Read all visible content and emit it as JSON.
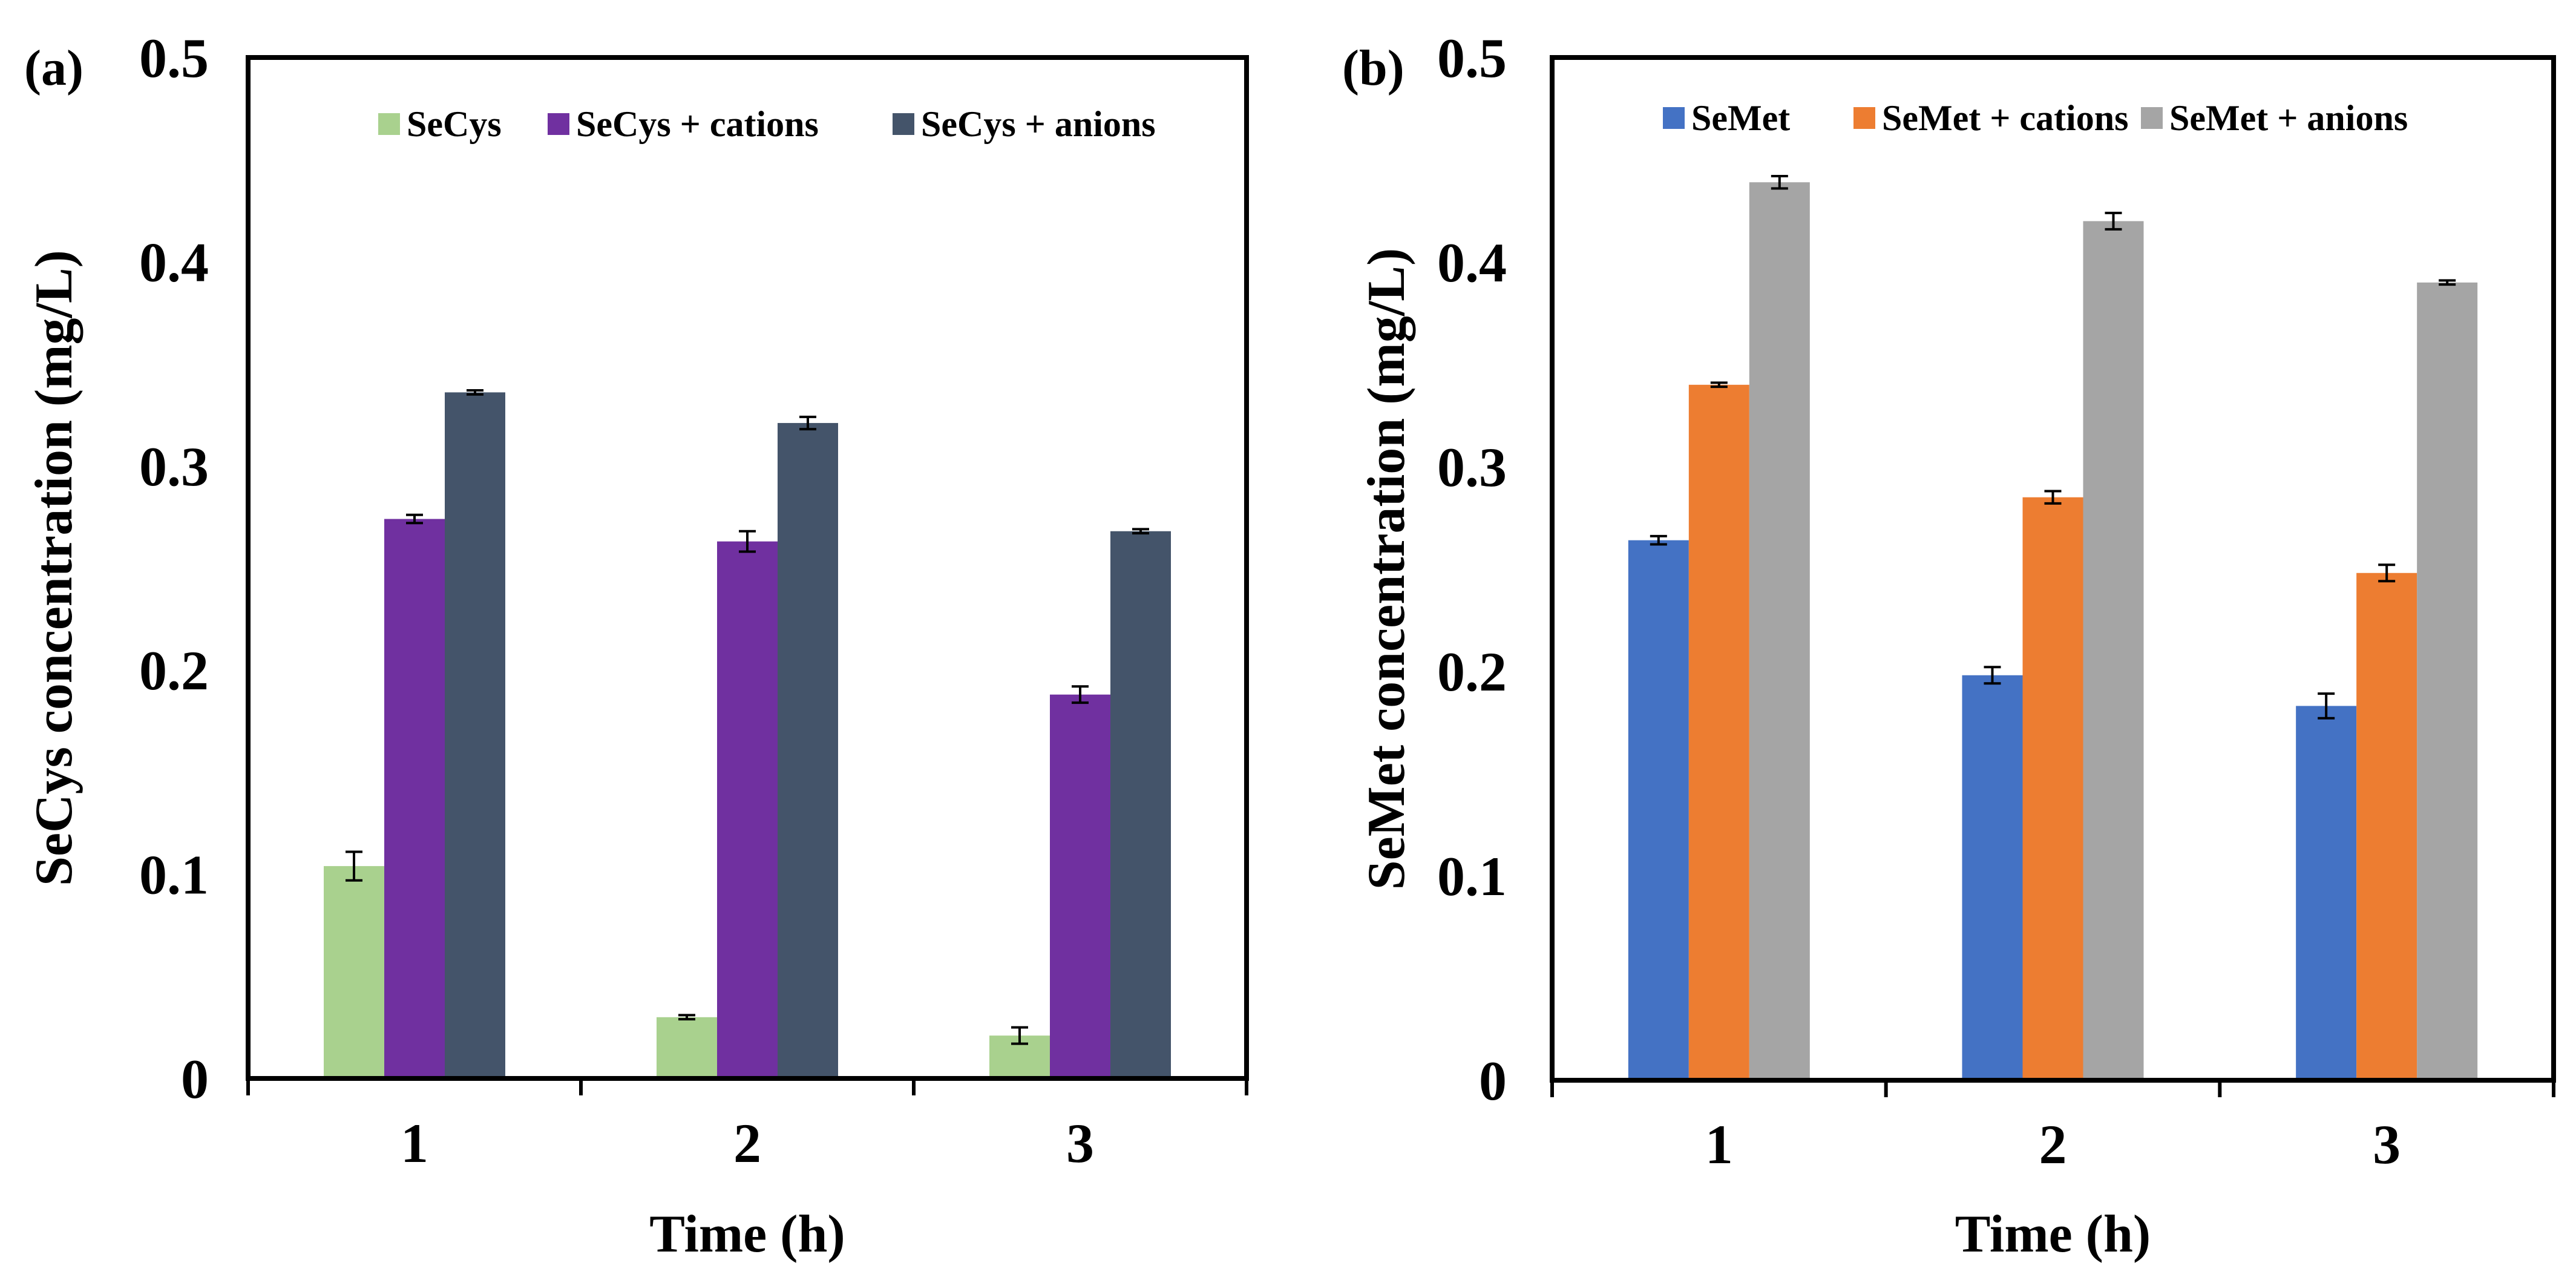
{
  "chart_data": [
    {
      "type": "bar",
      "panel": "(a)",
      "title": "",
      "xlabel": "Time (h)",
      "ylabel": "SeCys concentration (mg/L)",
      "ylim": [
        0,
        0.5
      ],
      "yticks": [
        "0",
        "0.1",
        "0.2",
        "0.3",
        "0.4",
        "0.5"
      ],
      "categories": [
        "1",
        "2",
        "3"
      ],
      "legend_position": "top",
      "series": [
        {
          "name": "SeCys",
          "color": "#a9d18e",
          "values": [
            0.104,
            0.03,
            0.021
          ],
          "errors": [
            0.007,
            0.001,
            0.004
          ]
        },
        {
          "name": "SeCys + cations",
          "color": "#7030a0",
          "values": [
            0.274,
            0.263,
            0.188
          ],
          "errors": [
            0.002,
            0.005,
            0.004
          ]
        },
        {
          "name": "SeCys + anions",
          "color": "#44546a",
          "values": [
            0.336,
            0.321,
            0.268
          ],
          "errors": [
            0.001,
            0.003,
            0.001
          ]
        }
      ]
    },
    {
      "type": "bar",
      "panel": "(b)",
      "title": "",
      "xlabel": "Time (h)",
      "ylabel": "SeMet concentration  (mg/L)",
      "ylim": [
        0,
        0.5
      ],
      "yticks": [
        "0",
        "0.1",
        "0.2",
        "0.3",
        "0.4",
        "0.5"
      ],
      "categories": [
        "1",
        "2",
        "3"
      ],
      "legend_position": "top",
      "series": [
        {
          "name": "SeMet",
          "color": "#4472c4",
          "values": [
            0.264,
            0.198,
            0.183
          ],
          "errors": [
            0.002,
            0.004,
            0.006
          ]
        },
        {
          "name": "SeMet + cations",
          "color": "#ed7d31",
          "values": [
            0.34,
            0.285,
            0.248
          ],
          "errors": [
            0.001,
            0.003,
            0.004
          ]
        },
        {
          "name": "SeMet + anions",
          "color": "#a5a5a5",
          "values": [
            0.439,
            0.42,
            0.39
          ],
          "errors": [
            0.003,
            0.004,
            0.001
          ]
        }
      ]
    }
  ]
}
